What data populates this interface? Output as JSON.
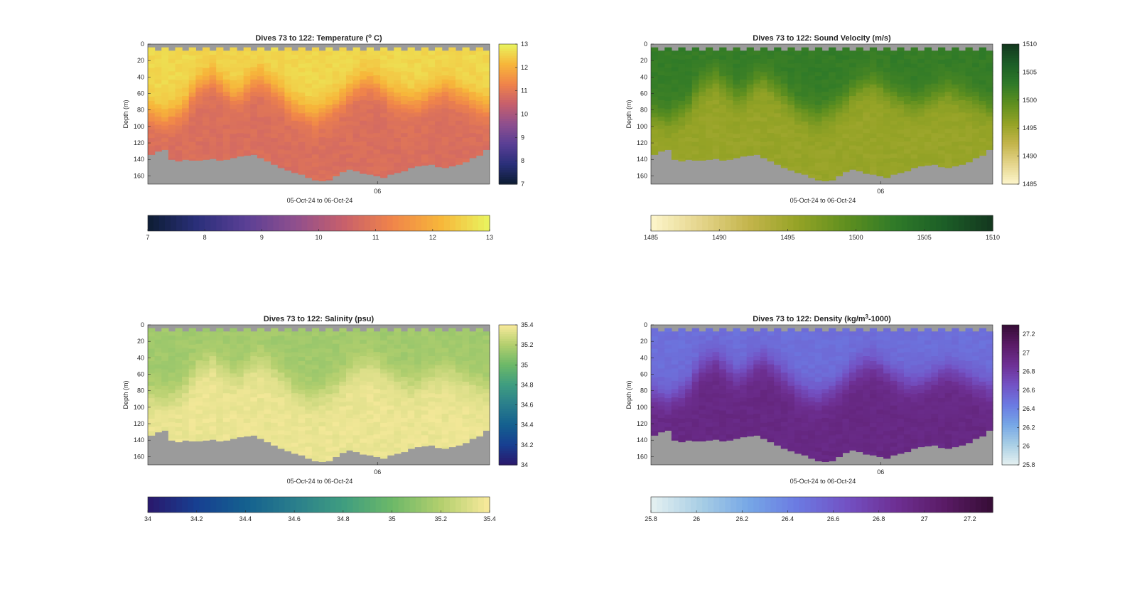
{
  "chart_data": [
    {
      "type": "heatmap",
      "title_parts": [
        "Dives 73 to 122: Temperature (",
        "o",
        " C)"
      ],
      "variable": "temperature",
      "ylabel": "Depth (m)",
      "xlabel": "05-Oct-24 to 06-Oct-24",
      "x_ticks": [
        "06"
      ],
      "y_ticks": [
        "0",
        "20",
        "40",
        "60",
        "80",
        "100",
        "120",
        "140",
        "160"
      ],
      "ylim": [
        0,
        170
      ],
      "clim": [
        7,
        13
      ],
      "colorbar_ticks": [
        "7",
        "8",
        "9",
        "10",
        "11",
        "12",
        "13"
      ],
      "colormap": "thermal",
      "colormap_stops": [
        "#0d1d33",
        "#2a2f7a",
        "#5a3f95",
        "#8e4f8e",
        "#c75f6c",
        "#f0844a",
        "#f7b63a",
        "#e9f55f"
      ],
      "dives": 50,
      "surface_value": 12.6,
      "deep_value": 10.8,
      "mixed_layer_depth_m": [
        85,
        88,
        90,
        86,
        82,
        75,
        60,
        50,
        45,
        40,
        48,
        55,
        62,
        60,
        52,
        45,
        42,
        48,
        55,
        62,
        70,
        78,
        82,
        86,
        88,
        84,
        80,
        74,
        66,
        58,
        52,
        48,
        46,
        50,
        56,
        62,
        66,
        70,
        72,
        70,
        66,
        62,
        58,
        55,
        58,
        62,
        66,
        70,
        74,
        78
      ],
      "bottom_depth_m": [
        134,
        130,
        128,
        140,
        142,
        140,
        141,
        141,
        140,
        139,
        141,
        140,
        138,
        136,
        135,
        134,
        138,
        142,
        146,
        150,
        153,
        156,
        158,
        162,
        165,
        166,
        165,
        160,
        155,
        152,
        154,
        157,
        158,
        160,
        162,
        158,
        156,
        154,
        150,
        148,
        147,
        146,
        149,
        150,
        148,
        146,
        143,
        138,
        135,
        128
      ]
    },
    {
      "type": "heatmap",
      "title_parts": [
        "Dives 73 to 122: Sound Velocity (m/s)"
      ],
      "variable": "sound_velocity",
      "ylabel": "Depth (m)",
      "xlabel": "05-Oct-24 to 06-Oct-24",
      "x_ticks": [
        "06"
      ],
      "y_ticks": [
        "0",
        "20",
        "40",
        "60",
        "80",
        "100",
        "120",
        "140",
        "160"
      ],
      "ylim": [
        0,
        170
      ],
      "clim": [
        1485,
        1510
      ],
      "colorbar_ticks": [
        "1485",
        "1490",
        "1495",
        "1500",
        "1505",
        "1510"
      ],
      "colormap": "speed",
      "colormap_stops": [
        "#fdf6cc",
        "#e5d58c",
        "#c4b54c",
        "#95a326",
        "#5f8f1f",
        "#2f7a28",
        "#1c5e27",
        "#14371e"
      ],
      "dives": 50,
      "surface_value": 1502.5,
      "deep_value": 1495.5,
      "mixed_layer_depth_m": [
        85,
        88,
        90,
        86,
        82,
        75,
        60,
        50,
        45,
        40,
        48,
        55,
        62,
        60,
        52,
        45,
        42,
        48,
        55,
        62,
        70,
        78,
        82,
        86,
        88,
        84,
        80,
        74,
        66,
        58,
        52,
        48,
        46,
        50,
        56,
        62,
        66,
        70,
        72,
        70,
        66,
        62,
        58,
        55,
        58,
        62,
        66,
        70,
        74,
        78
      ],
      "bottom_depth_m": [
        134,
        130,
        128,
        140,
        142,
        140,
        141,
        141,
        140,
        139,
        141,
        140,
        138,
        136,
        135,
        134,
        138,
        142,
        146,
        150,
        153,
        156,
        158,
        162,
        165,
        166,
        165,
        160,
        155,
        152,
        154,
        157,
        158,
        160,
        162,
        158,
        156,
        154,
        150,
        148,
        147,
        146,
        149,
        150,
        148,
        146,
        143,
        138,
        135,
        128
      ]
    },
    {
      "type": "heatmap",
      "title_parts": [
        "Dives 73 to 122: Salinity (psu)"
      ],
      "variable": "salinity",
      "ylabel": "Depth (m)",
      "xlabel": "05-Oct-24 to 06-Oct-24",
      "x_ticks": [
        "06"
      ],
      "y_ticks": [
        "0",
        "20",
        "40",
        "60",
        "80",
        "100",
        "120",
        "140",
        "160"
      ],
      "ylim": [
        0,
        170
      ],
      "clim": [
        34,
        35.4
      ],
      "colorbar_ticks": [
        "34",
        "34.2",
        "34.4",
        "34.6",
        "34.8",
        "35",
        "35.2",
        "35.4"
      ],
      "colormap": "haline",
      "colormap_stops": [
        "#2a186c",
        "#173f91",
        "#14608f",
        "#2a7e8c",
        "#3f9d80",
        "#6cb868",
        "#b3cf6e",
        "#f9ea9c"
      ],
      "dives": 50,
      "surface_value": 35.15,
      "deep_value": 35.36,
      "mixed_layer_depth_m": [
        85,
        88,
        90,
        86,
        82,
        75,
        60,
        50,
        45,
        40,
        48,
        55,
        62,
        60,
        52,
        45,
        42,
        48,
        55,
        62,
        70,
        78,
        82,
        86,
        88,
        84,
        80,
        74,
        66,
        58,
        52,
        48,
        46,
        50,
        56,
        62,
        66,
        70,
        72,
        70,
        66,
        62,
        58,
        55,
        58,
        62,
        66,
        70,
        74,
        78
      ],
      "bottom_depth_m": [
        134,
        130,
        128,
        140,
        142,
        140,
        141,
        141,
        140,
        139,
        141,
        140,
        138,
        136,
        135,
        134,
        138,
        142,
        146,
        150,
        153,
        156,
        158,
        162,
        165,
        166,
        165,
        160,
        155,
        152,
        154,
        157,
        158,
        160,
        162,
        158,
        156,
        154,
        150,
        148,
        147,
        146,
        149,
        150,
        148,
        146,
        143,
        138,
        135,
        128
      ]
    },
    {
      "type": "heatmap",
      "title_parts": [
        "Dives 73 to 122: Density (kg/m",
        "3",
        "-1000)"
      ],
      "variable": "density",
      "ylabel": "Depth (m)",
      "xlabel": "05-Oct-24 to 06-Oct-24",
      "x_ticks": [
        "06"
      ],
      "y_ticks": [
        "0",
        "20",
        "40",
        "60",
        "80",
        "100",
        "120",
        "140",
        "160"
      ],
      "ylim": [
        0,
        170
      ],
      "clim": [
        25.8,
        27.3
      ],
      "colorbar_ticks": [
        "25.8",
        "26",
        "26.2",
        "26.4",
        "26.6",
        "26.8",
        "27",
        "27.2"
      ],
      "colormap": "dense",
      "colormap_stops": [
        "#e6f1f1",
        "#a9cfe5",
        "#76a7e6",
        "#6b7ae2",
        "#7352c4",
        "#6e3094",
        "#5a1b66",
        "#360d35"
      ],
      "dives": 50,
      "surface_value": 26.5,
      "deep_value": 26.95,
      "mixed_layer_depth_m": [
        85,
        88,
        90,
        86,
        82,
        75,
        60,
        50,
        45,
        40,
        48,
        55,
        62,
        60,
        52,
        45,
        42,
        48,
        55,
        62,
        70,
        78,
        82,
        86,
        88,
        84,
        80,
        74,
        66,
        58,
        52,
        48,
        46,
        50,
        56,
        62,
        66,
        70,
        72,
        70,
        66,
        62,
        58,
        55,
        58,
        62,
        66,
        70,
        74,
        78
      ],
      "bottom_depth_m": [
        134,
        130,
        128,
        140,
        142,
        140,
        141,
        141,
        140,
        139,
        141,
        140,
        138,
        136,
        135,
        134,
        138,
        142,
        146,
        150,
        153,
        156,
        158,
        162,
        165,
        166,
        165,
        160,
        155,
        152,
        154,
        157,
        158,
        160,
        162,
        158,
        156,
        154,
        150,
        148,
        147,
        146,
        149,
        150,
        148,
        146,
        143,
        138,
        135,
        128
      ]
    }
  ],
  "colors": {
    "no_data": "#9b9b9b",
    "axis": "#262626"
  }
}
